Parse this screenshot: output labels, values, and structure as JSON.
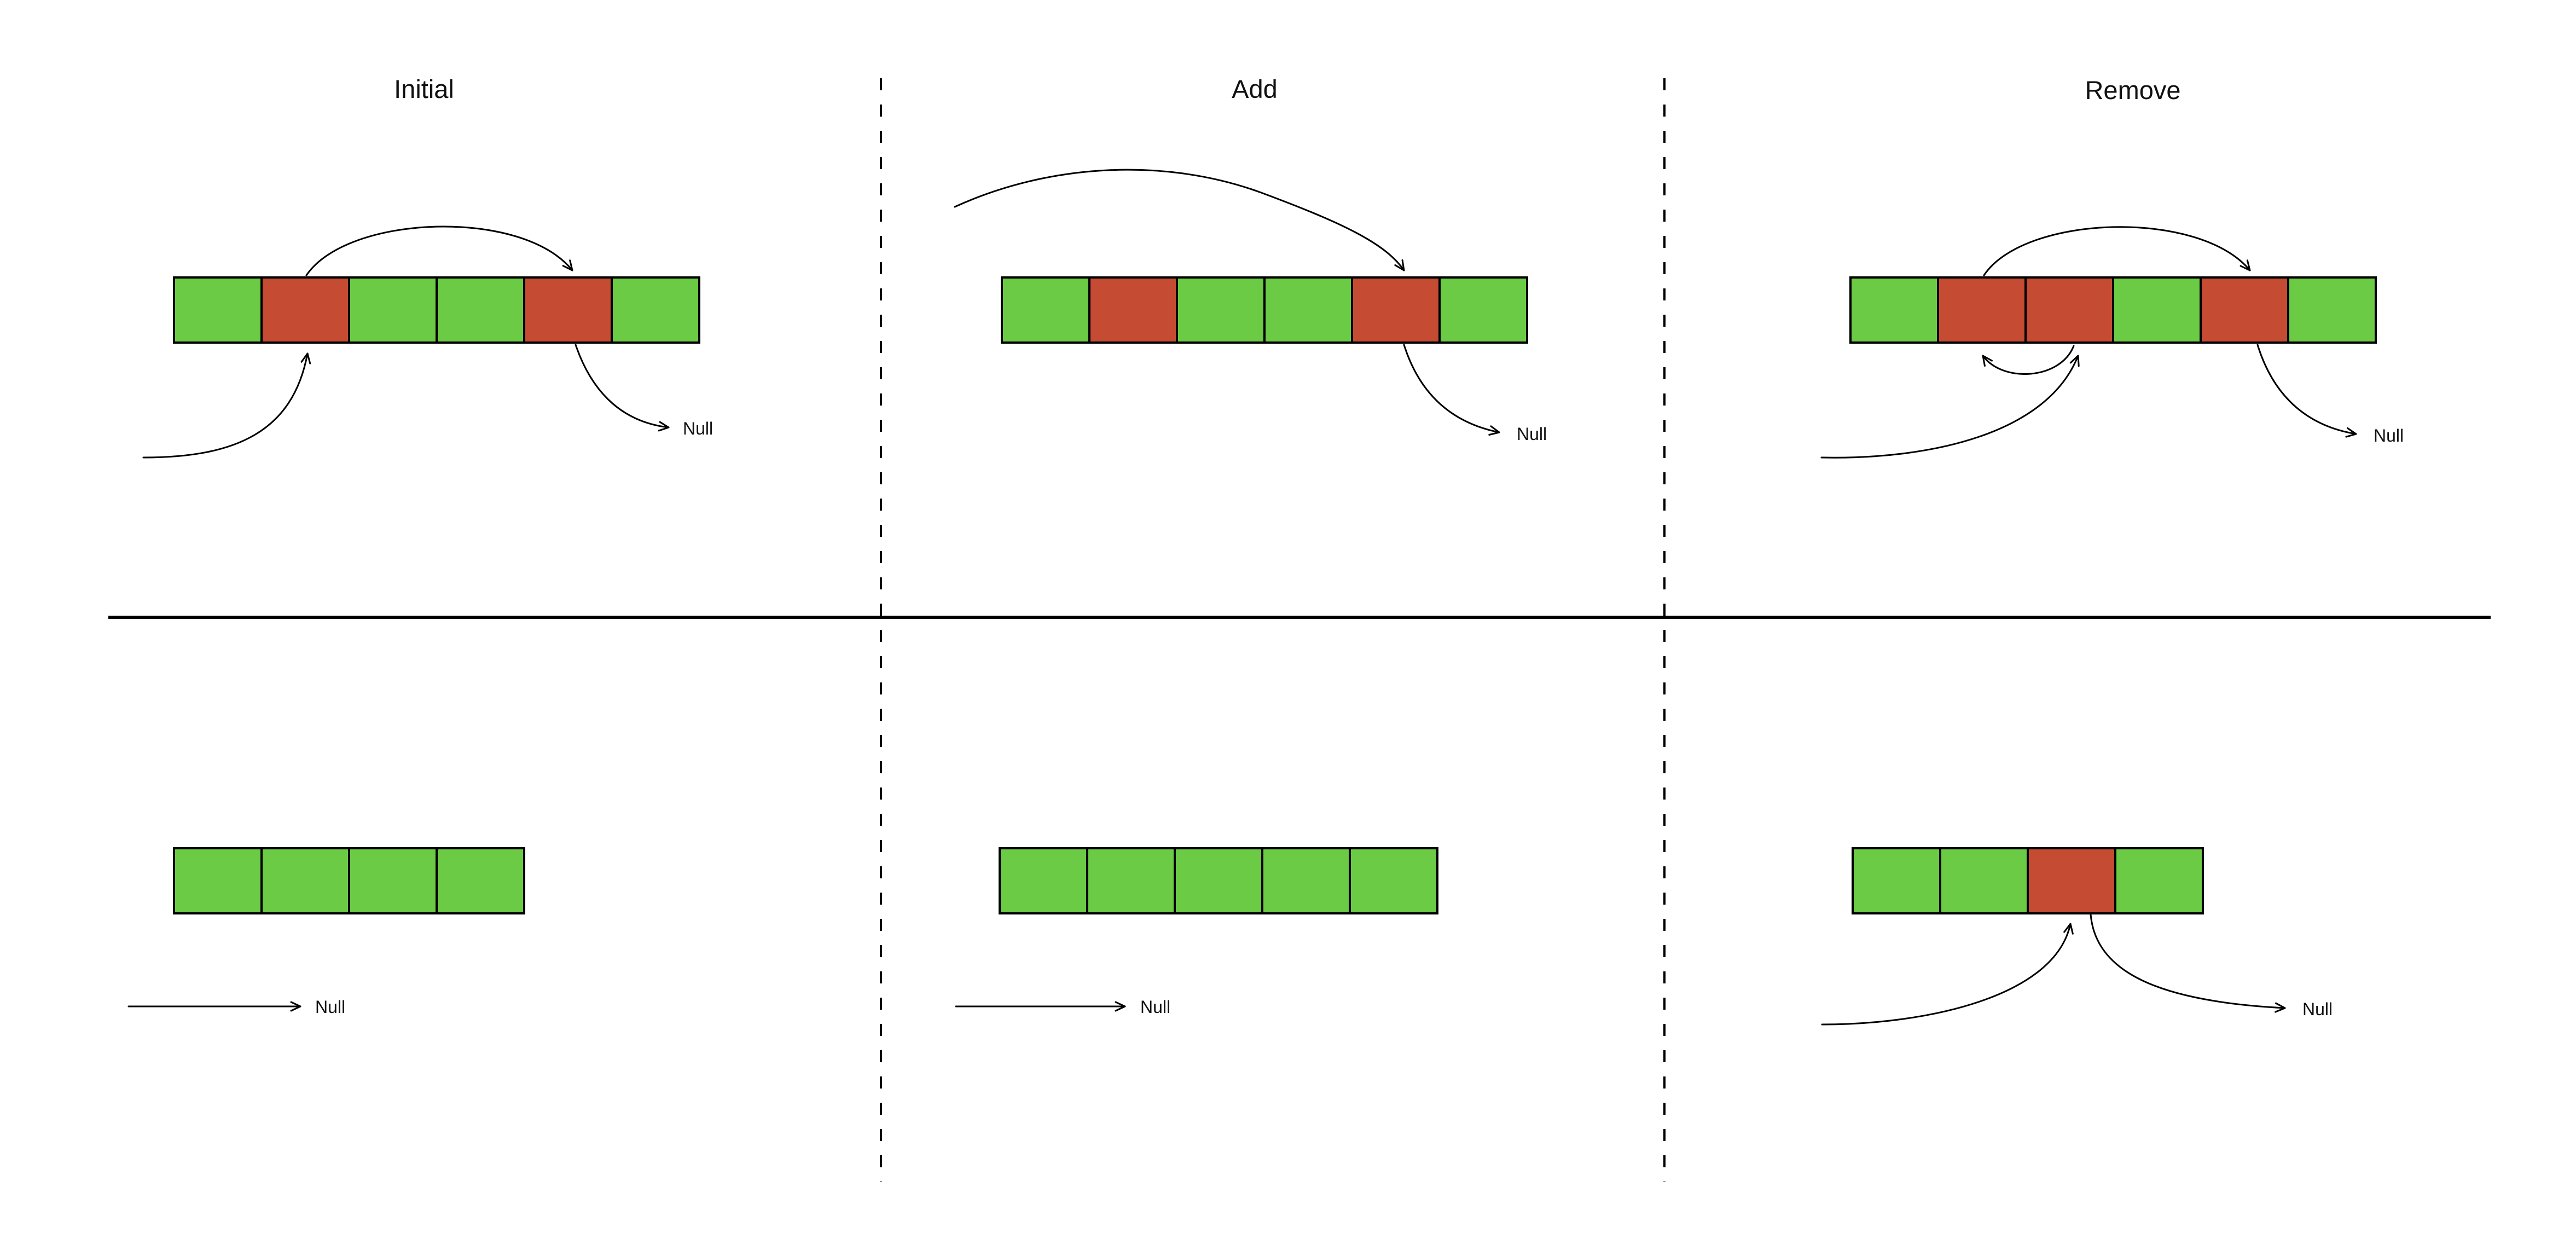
{
  "diagram": {
    "titles": [
      {
        "label": "Initial"
      },
      {
        "label": "Add"
      },
      {
        "label": "Remove"
      }
    ],
    "null_label": "Null",
    "colors": {
      "green": "#6BCB45",
      "red": "#C54C32",
      "stroke": "#000000",
      "background": "#FFFFFF"
    },
    "rows": {
      "top": [
        {
          "panel": "initial",
          "cells": [
            "green",
            "red",
            "green",
            "green",
            "red",
            "green"
          ]
        },
        {
          "panel": "add",
          "cells": [
            "green",
            "red",
            "green",
            "green",
            "red",
            "green"
          ]
        },
        {
          "panel": "remove",
          "cells": [
            "green",
            "red",
            "red",
            "green",
            "red",
            "green"
          ]
        }
      ],
      "bottom": [
        {
          "panel": "initial",
          "cells": [
            "green",
            "green",
            "green",
            "green"
          ]
        },
        {
          "panel": "add",
          "cells": [
            "green",
            "green",
            "green",
            "green",
            "green"
          ]
        },
        {
          "panel": "remove",
          "cells": [
            "green",
            "green",
            "red",
            "green"
          ]
        }
      ]
    }
  }
}
